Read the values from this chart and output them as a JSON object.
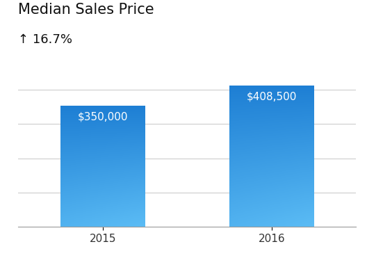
{
  "title": "Median Sales Price",
  "subtitle": "↑ 16.7%",
  "categories": [
    "2015",
    "2016"
  ],
  "values": [
    350000,
    408500
  ],
  "bar_labels": [
    "$350,000",
    "$408,500"
  ],
  "bar_color_light": "#5bbcf5",
  "bar_color_dark": "#1e7fd4",
  "label_color": "#ffffff",
  "label_fontsize": 11,
  "title_fontsize": 15,
  "subtitle_fontsize": 13,
  "tick_label_fontsize": 11,
  "ylim": [
    0,
    450000
  ],
  "background_color": "#ffffff",
  "grid_color": "#cccccc"
}
